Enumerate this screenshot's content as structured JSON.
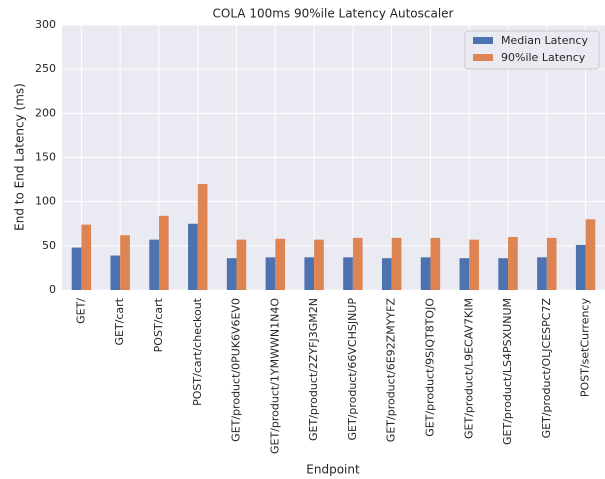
{
  "chart_data": {
    "type": "bar",
    "title": "COLA 100ms 90%ile Latency Autoscaler",
    "x_label": "Endpoint",
    "y_label": "End to End Latency (ms)",
    "categories": [
      "GET/",
      "GET/cart",
      "POST/cart",
      "POST/cart/checkout",
      "GET/product/0PUK6V6EV0",
      "GET/product/1YMWWN1N4O",
      "GET/product/2ZYFJ3GM2N",
      "GET/product/66VCHSJNUP",
      "GET/product/6E92ZMYYFZ",
      "GET/product/9SIQT8TOJO",
      "GET/product/L9ECAV7KIM",
      "GET/product/LS4PSXUNUM",
      "GET/product/OLJCESPC7Z",
      "POST/setCurrency"
    ],
    "series": [
      {
        "name": "Median Latency",
        "color": "#4c72b0",
        "values": [
          48,
          39,
          57,
          75,
          36,
          37,
          37,
          37,
          36,
          37,
          36,
          36,
          37,
          51
        ]
      },
      {
        "name": "90%ile Latency",
        "color": "#dd8452",
        "values": [
          74,
          62,
          84,
          120,
          57,
          58,
          57,
          59,
          59,
          59,
          57,
          60,
          59,
          80
        ]
      }
    ],
    "ylim": [
      0,
      300
    ],
    "yticks": [
      0,
      50,
      100,
      150,
      200,
      250,
      300
    ],
    "grid": true,
    "legend": "upper right"
  }
}
